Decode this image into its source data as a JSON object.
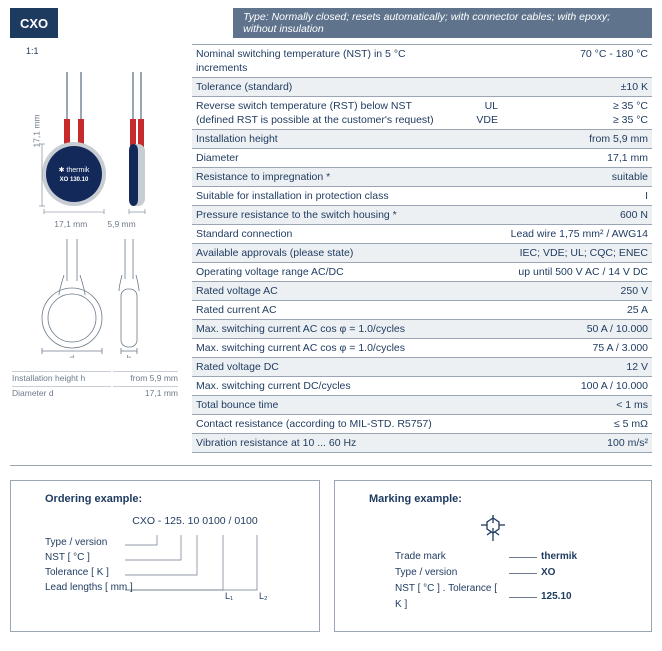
{
  "header": {
    "product_tag": "CXO",
    "type_description": "Type: Normally closed; resets automatically; with connector cables; with epoxy; without insulation"
  },
  "product_image": {
    "scale": "1:1",
    "height_label": "17,1 mm",
    "width_labels": [
      "17,1 mm",
      "5,9 mm"
    ],
    "disc_color": "#12295a",
    "side_color": "#c8ccd3",
    "lead_color": "#c62a2a",
    "wire_color": "#9aa6b5",
    "brand_on_disc": "thermik",
    "model_on_disc": "XO 130.10"
  },
  "diagram2_labels": {
    "d": "d",
    "h": "h"
  },
  "legend": [
    {
      "label": "Installation height h",
      "value": "from 5,9 mm"
    },
    {
      "label": "Diameter d",
      "value": "17,1 mm"
    }
  ],
  "specs": [
    {
      "label": "Nominal switching temperature (NST) in 5 °C increments",
      "value": "70 °C - 180 °C"
    },
    {
      "label": "Tolerance (standard)",
      "value": "±10 K",
      "alt": true
    },
    {
      "label": "Reverse switch temperature (RST) below NST\n(defined RST is possible at the customer's request)",
      "mid": "UL\nVDE",
      "value": "≥ 35 °C\n≥ 35 °C"
    },
    {
      "label": "Installation height",
      "value": "from  5,9 mm",
      "alt": true
    },
    {
      "label": "Diameter",
      "value": "17,1 mm"
    },
    {
      "label": "Resistance to impregnation *",
      "value": "suitable",
      "alt": true
    },
    {
      "label": "Suitable for installation in protection class",
      "value": "I"
    },
    {
      "label": "Pressure resistance to the switch housing *",
      "value": "600 N",
      "alt": true
    },
    {
      "label": "Standard connection",
      "value": "Lead wire 1,75 mm² / AWG14"
    },
    {
      "label": "Available approvals (please state)",
      "value": "IEC; VDE; UL; CQC; ENEC",
      "alt": true
    },
    {
      "label": "Operating voltage range AC/DC",
      "value": "up until 500 V AC / 14 V DC"
    },
    {
      "label": "Rated voltage AC",
      "value": "250 V",
      "alt": true
    },
    {
      "label": "Rated current AC",
      "value": "25 A"
    },
    {
      "label": "Max. switching current  AC cos φ = 1.0/cycles",
      "value": "50 A / 10.000",
      "alt": true
    },
    {
      "label": "Max. switching current  AC cos φ = 1.0/cycles",
      "value": "75 A /   3.000"
    },
    {
      "label": "Rated voltage DC",
      "value": "12 V",
      "alt": true
    },
    {
      "label": "Max. switching current DC/cycles",
      "value": "100 A / 10.000"
    },
    {
      "label": "Total bounce time",
      "value": "< 1 ms",
      "alt": true
    },
    {
      "label": "Contact resistance (according to MIL-STD. R5757)",
      "value": "≤ 5 mΩ"
    },
    {
      "label": "Vibration resistance at 10 ... 60 Hz",
      "value": "100 m/s²",
      "alt": true
    }
  ],
  "ordering": {
    "title": "Ordering example:",
    "code": "CXO - 125. 10 0100 / 0100",
    "lines": [
      "Type / version",
      "NST [ °C ]",
      "Tolerance [ K ]",
      "Lead lengths [ mm ]"
    ],
    "tail_labels": [
      "L₁",
      "L₂"
    ]
  },
  "marking": {
    "title": "Marking example:",
    "rows": [
      {
        "label": "Trade mark",
        "value": "thermik"
      },
      {
        "label": "Type / version",
        "value": "XO"
      },
      {
        "label": "NST [ °C ] . Tolerance [ K ]",
        "value": "125.10"
      }
    ]
  }
}
